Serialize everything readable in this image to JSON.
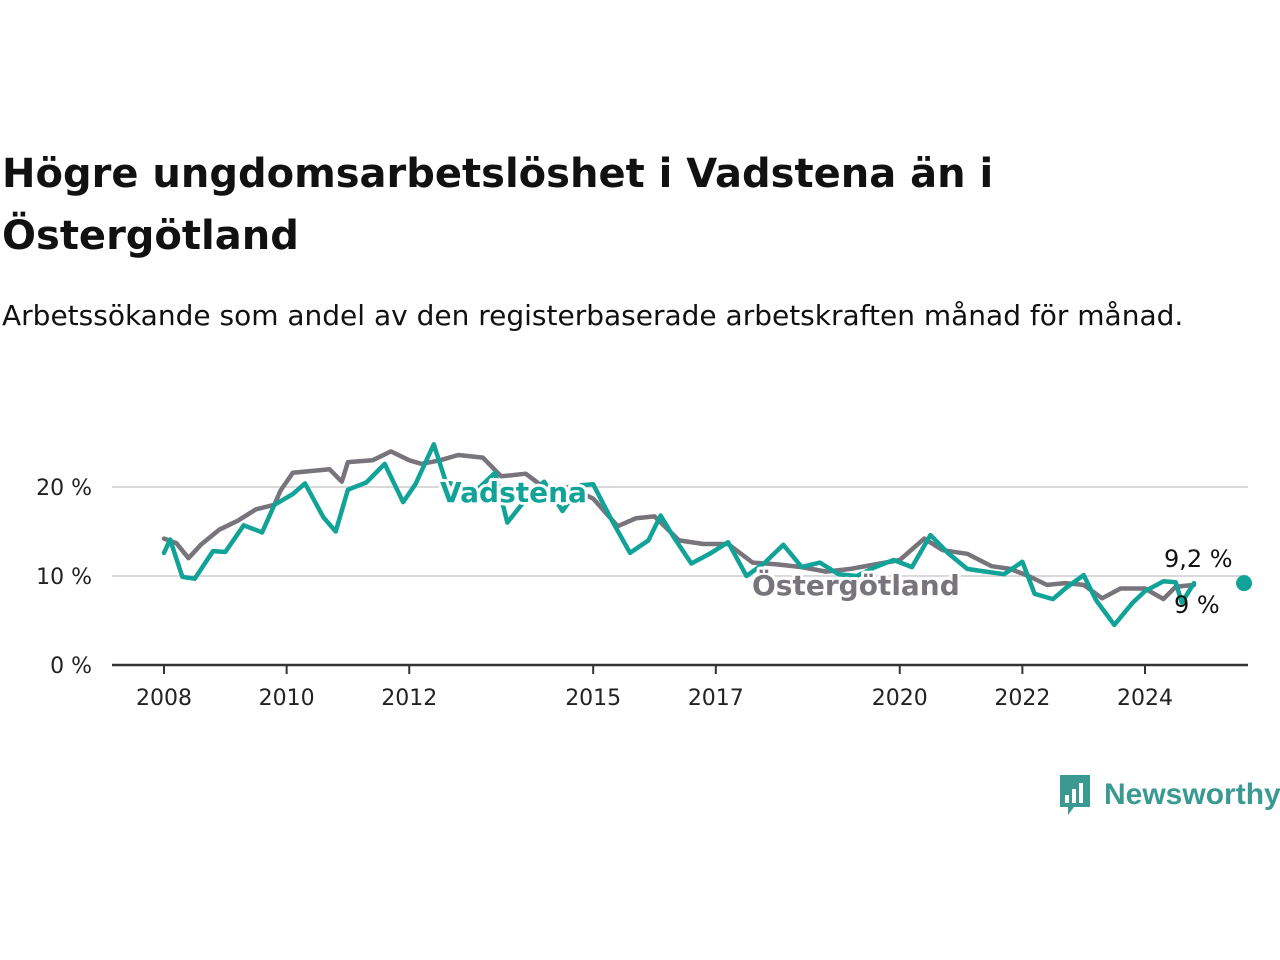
{
  "title": "Högre ungdomsarbetslöshet i Vadstena än i Östergötland",
  "subtitle": "Arbetssökande som andel av den registerbaserade arbetskraften månad för månad.",
  "brand": {
    "name": "Newsworthy",
    "icon": "newsworthy-logo-icon",
    "color": "#3a9a92"
  },
  "chart_data": {
    "type": "line",
    "x_label_ticks": [
      "2008",
      "2010",
      "2012",
      "2015",
      "2017",
      "2020",
      "2022",
      "2024"
    ],
    "y_ticks": [
      "0 %",
      "10 %",
      "20 %"
    ],
    "ylim": [
      0,
      27
    ],
    "grid": true,
    "series": [
      {
        "name": "Östergötland",
        "color": "#77747c",
        "end_label": "9 %",
        "points": [
          [
            2008.0,
            14.2
          ],
          [
            2008.2,
            13.7
          ],
          [
            2008.4,
            12.0
          ],
          [
            2008.6,
            13.5
          ],
          [
            2008.9,
            15.2
          ],
          [
            2009.2,
            16.2
          ],
          [
            2009.5,
            17.5
          ],
          [
            2009.8,
            18.0
          ],
          [
            2009.9,
            19.6
          ],
          [
            2010.1,
            21.6
          ],
          [
            2010.4,
            21.8
          ],
          [
            2010.7,
            22.0
          ],
          [
            2010.9,
            20.6
          ],
          [
            2011.0,
            22.8
          ],
          [
            2011.4,
            23.0
          ],
          [
            2011.7,
            24.0
          ],
          [
            2012.0,
            23.0
          ],
          [
            2012.2,
            22.6
          ],
          [
            2012.5,
            23.0
          ],
          [
            2012.8,
            23.6
          ],
          [
            2013.2,
            23.3
          ],
          [
            2013.5,
            21.2
          ],
          [
            2013.9,
            21.5
          ],
          [
            2014.3,
            19.4
          ],
          [
            2014.6,
            20.0
          ],
          [
            2015.0,
            18.7
          ],
          [
            2015.4,
            15.6
          ],
          [
            2015.7,
            16.5
          ],
          [
            2016.0,
            16.7
          ],
          [
            2016.4,
            14.0
          ],
          [
            2016.8,
            13.6
          ],
          [
            2017.2,
            13.6
          ],
          [
            2017.6,
            11.5
          ],
          [
            2018.0,
            11.3
          ],
          [
            2018.4,
            11.0
          ],
          [
            2018.8,
            10.5
          ],
          [
            2019.2,
            10.8
          ],
          [
            2019.6,
            11.3
          ],
          [
            2020.0,
            11.8
          ],
          [
            2020.4,
            14.2
          ],
          [
            2020.7,
            12.9
          ],
          [
            2021.1,
            12.5
          ],
          [
            2021.5,
            11.1
          ],
          [
            2021.8,
            10.8
          ],
          [
            2022.1,
            10.0
          ],
          [
            2022.4,
            9.0
          ],
          [
            2022.7,
            9.2
          ],
          [
            2023.0,
            9.0
          ],
          [
            2023.3,
            7.5
          ],
          [
            2023.6,
            8.6
          ],
          [
            2024.0,
            8.6
          ],
          [
            2024.3,
            7.4
          ],
          [
            2024.5,
            8.8
          ],
          [
            2024.8,
            9.0
          ]
        ]
      },
      {
        "name": "Vadstena",
        "color": "#11a398",
        "end_label": "9,2 %",
        "points": [
          [
            2008.0,
            12.6
          ],
          [
            2008.1,
            14.1
          ],
          [
            2008.3,
            9.9
          ],
          [
            2008.5,
            9.7
          ],
          [
            2008.8,
            12.8
          ],
          [
            2009.0,
            12.7
          ],
          [
            2009.3,
            15.7
          ],
          [
            2009.6,
            14.9
          ],
          [
            2009.8,
            18.0
          ],
          [
            2010.1,
            19.2
          ],
          [
            2010.3,
            20.4
          ],
          [
            2010.6,
            16.6
          ],
          [
            2010.8,
            15.0
          ],
          [
            2011.0,
            19.7
          ],
          [
            2011.3,
            20.5
          ],
          [
            2011.6,
            22.6
          ],
          [
            2011.9,
            18.3
          ],
          [
            2012.1,
            20.3
          ],
          [
            2012.4,
            24.8
          ],
          [
            2012.6,
            20.5
          ],
          [
            2012.8,
            20.2
          ],
          [
            2013.0,
            19.0
          ],
          [
            2013.4,
            21.6
          ],
          [
            2013.6,
            16.0
          ],
          [
            2013.9,
            18.6
          ],
          [
            2014.2,
            20.6
          ],
          [
            2014.5,
            17.3
          ],
          [
            2014.8,
            20.2
          ],
          [
            2015.0,
            20.3
          ],
          [
            2015.3,
            16.3
          ],
          [
            2015.6,
            12.6
          ],
          [
            2015.9,
            14.0
          ],
          [
            2016.1,
            16.8
          ],
          [
            2016.3,
            14.5
          ],
          [
            2016.6,
            11.4
          ],
          [
            2016.9,
            12.5
          ],
          [
            2017.2,
            13.8
          ],
          [
            2017.5,
            10.0
          ],
          [
            2017.8,
            11.5
          ],
          [
            2018.1,
            13.5
          ],
          [
            2018.4,
            11.0
          ],
          [
            2018.7,
            11.5
          ],
          [
            2019.0,
            10.2
          ],
          [
            2019.3,
            10.0
          ],
          [
            2019.6,
            11.0
          ],
          [
            2019.9,
            11.8
          ],
          [
            2020.2,
            11.0
          ],
          [
            2020.5,
            14.6
          ],
          [
            2020.8,
            12.5
          ],
          [
            2021.1,
            10.8
          ],
          [
            2021.4,
            10.5
          ],
          [
            2021.7,
            10.2
          ],
          [
            2022.0,
            11.6
          ],
          [
            2022.2,
            8.0
          ],
          [
            2022.5,
            7.4
          ],
          [
            2022.7,
            8.6
          ],
          [
            2023.0,
            10.1
          ],
          [
            2023.2,
            7.3
          ],
          [
            2023.5,
            4.5
          ],
          [
            2023.8,
            7.0
          ],
          [
            2024.0,
            8.3
          ],
          [
            2024.3,
            9.4
          ],
          [
            2024.5,
            9.3
          ],
          [
            2024.6,
            7.0
          ],
          [
            2024.8,
            9.2
          ]
        ]
      }
    ]
  }
}
